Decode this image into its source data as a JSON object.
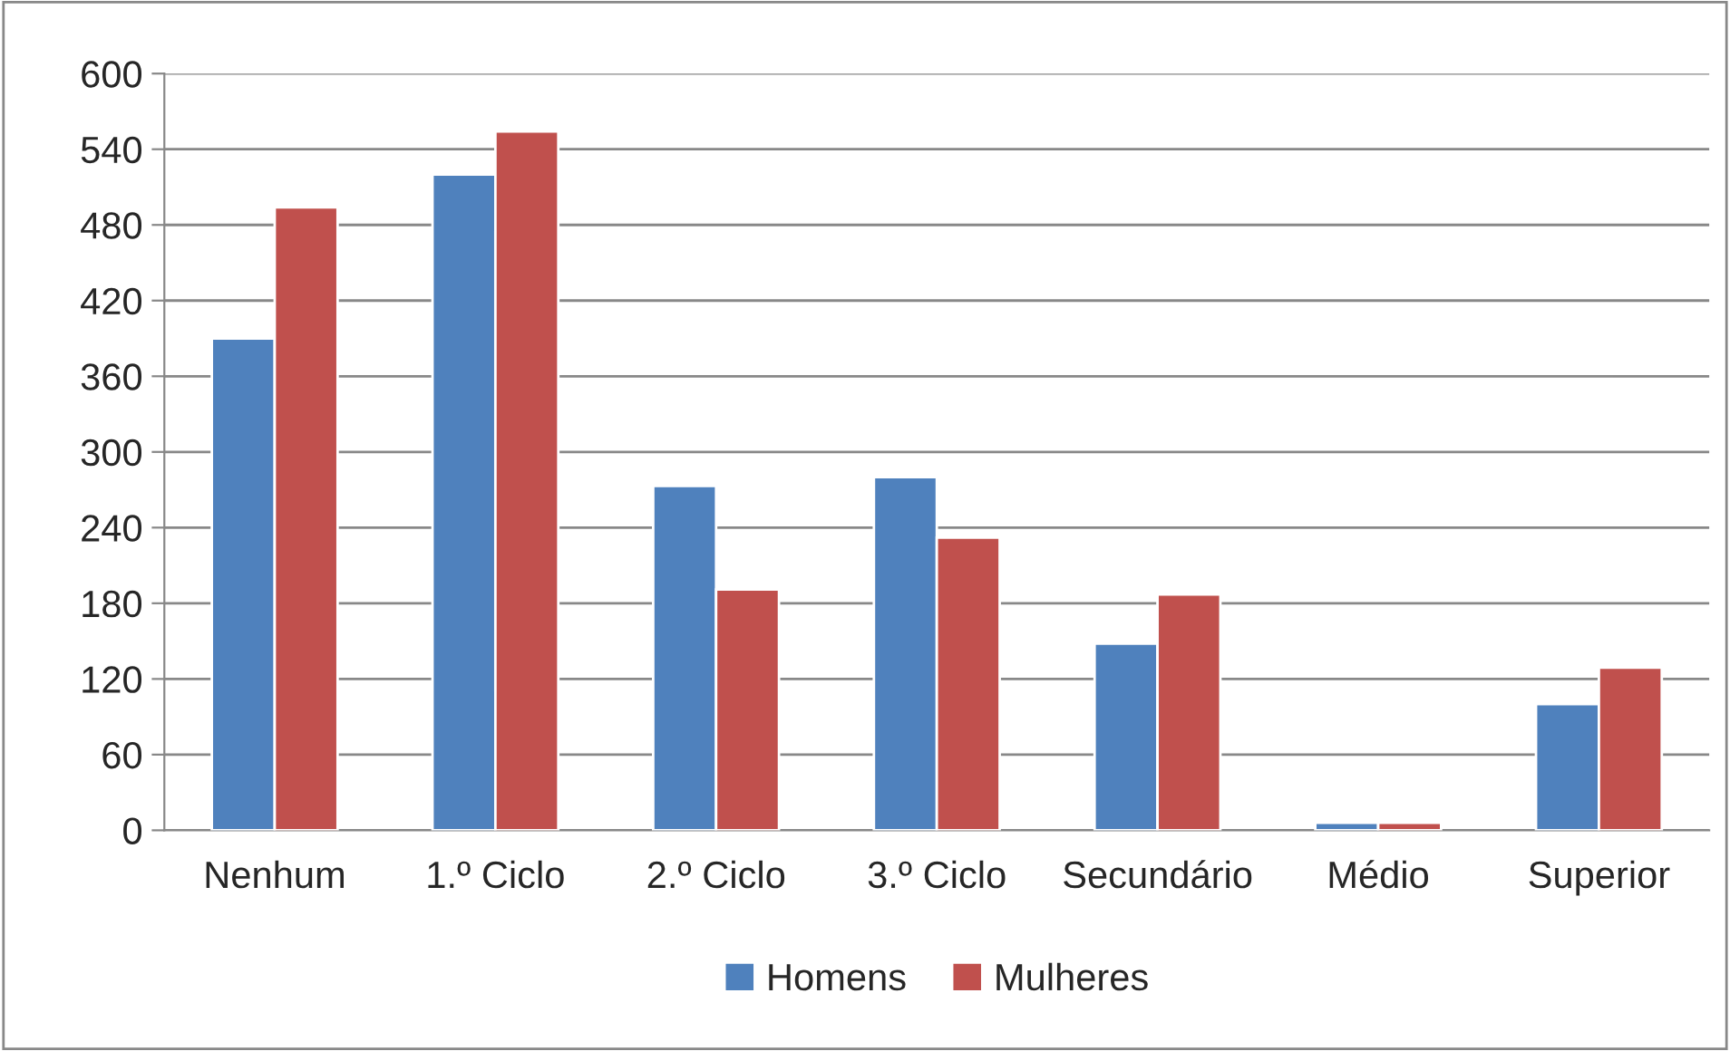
{
  "chart_data": {
    "type": "bar",
    "categories": [
      "Nenhum",
      "1.º Ciclo",
      "2.º Ciclo",
      "3.º Ciclo",
      "Secundário",
      "Médio",
      "Superior"
    ],
    "series": [
      {
        "name": "Homens",
        "color": "#4f81bd",
        "values": [
          390,
          520,
          273,
          280,
          148,
          6,
          100
        ]
      },
      {
        "name": "Mulheres",
        "color": "#c0504d",
        "values": [
          494,
          554,
          191,
          232,
          187,
          6,
          129
        ]
      }
    ],
    "ylim": [
      0,
      600
    ],
    "yticks": [
      0,
      60,
      120,
      180,
      240,
      300,
      360,
      420,
      480,
      540,
      600
    ],
    "grid": "y",
    "legend": "bottom"
  }
}
